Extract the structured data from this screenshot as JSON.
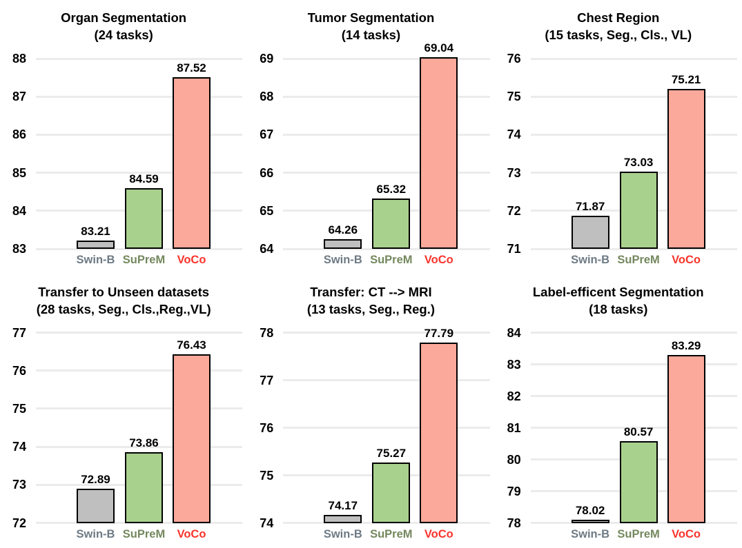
{
  "figure": {
    "description": "Six bar-chart panels comparing three pretraining methods across medical imaging benchmark groups",
    "background_color": "#ffffff"
  },
  "methods": [
    {
      "name": "Swin-B",
      "bar_color": "#bfbfbf",
      "label_color": "#6e7a84"
    },
    {
      "name": "SuPreM",
      "bar_color": "#a9d18e",
      "label_color": "#74885e"
    },
    {
      "name": "VoCo",
      "bar_color": "#faa99a",
      "label_color": "#fa342c"
    }
  ],
  "styles": {
    "grid_color": "#ebebeb",
    "bar_border_color": "#000000",
    "text_color": "#000000",
    "grid_orientation": "horizontal",
    "legend": "none"
  },
  "chart_data": [
    {
      "type": "bar",
      "title": "Organ Segmentation",
      "subtitle": "(24 tasks)",
      "categories": [
        "Swin-B",
        "SuPreM",
        "VoCo"
      ],
      "values": [
        83.21,
        84.59,
        87.52
      ],
      "value_labels": [
        "83.21",
        "84.59",
        "87.52"
      ],
      "ylim": [
        83,
        88
      ],
      "yticks": [
        83,
        84,
        85,
        86,
        87,
        88
      ]
    },
    {
      "type": "bar",
      "title": "Tumor Segmentation",
      "subtitle": "(14 tasks)",
      "categories": [
        "Swin-B",
        "SuPreM",
        "VoCo"
      ],
      "values": [
        64.26,
        65.32,
        69.04
      ],
      "value_labels": [
        "64.26",
        "65.32",
        "69.04"
      ],
      "ylim": [
        64,
        69
      ],
      "yticks": [
        64,
        65,
        66,
        67,
        68,
        69
      ]
    },
    {
      "type": "bar",
      "title": "Chest Region",
      "subtitle": "(15 tasks, Seg., Cls., VL)",
      "categories": [
        "Swin-B",
        "SuPreM",
        "VoCo"
      ],
      "values": [
        71.87,
        73.03,
        75.21
      ],
      "value_labels": [
        "71.87",
        "73.03",
        "75.21"
      ],
      "ylim": [
        71,
        76
      ],
      "yticks": [
        71,
        72,
        73,
        74,
        75,
        76
      ]
    },
    {
      "type": "bar",
      "title": "Transfer to Unseen datasets",
      "subtitle": "(28 tasks, Seg., Cls.,Reg.,VL)",
      "categories": [
        "Swin-B",
        "SuPreM",
        "VoCo"
      ],
      "values": [
        72.89,
        73.86,
        76.43
      ],
      "value_labels": [
        "72.89",
        "73.86",
        "76.43"
      ],
      "ylim": [
        72,
        77
      ],
      "yticks": [
        72,
        73,
        74,
        75,
        76,
        77
      ]
    },
    {
      "type": "bar",
      "title": "Transfer: CT --> MRI",
      "subtitle": "(13 tasks, Seg., Reg.)",
      "categories": [
        "Swin-B",
        "SuPreM",
        "VoCo"
      ],
      "values": [
        74.17,
        75.27,
        77.79
      ],
      "value_labels": [
        "74.17",
        "75.27",
        "77.79"
      ],
      "ylim": [
        74,
        78
      ],
      "yticks": [
        74,
        75,
        76,
        77,
        78
      ]
    },
    {
      "type": "bar",
      "title": "Label-efficent Segmentation",
      "subtitle": "(18 tasks)",
      "categories": [
        "Swin-B",
        "SuPreM",
        "VoCo"
      ],
      "values": [
        78.02,
        80.57,
        83.29
      ],
      "value_labels": [
        "78.02",
        "80.57",
        "83.29"
      ],
      "ylim": [
        78,
        84
      ],
      "yticks": [
        78,
        79,
        80,
        81,
        82,
        83,
        84
      ]
    }
  ]
}
